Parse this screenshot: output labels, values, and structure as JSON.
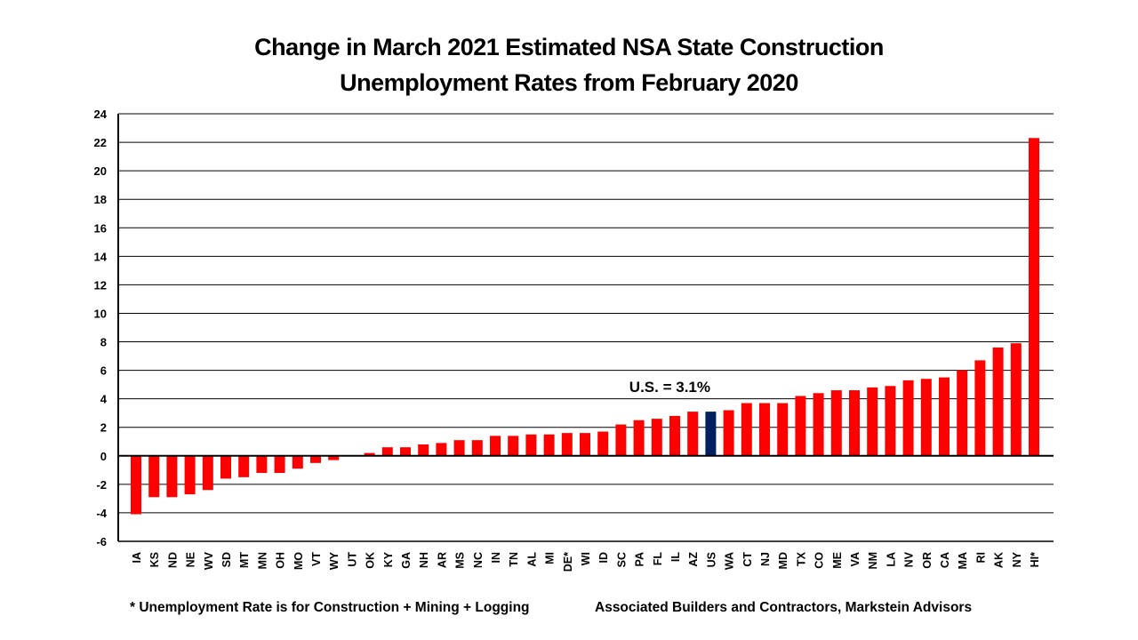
{
  "chart_data": {
    "type": "bar",
    "title_line1": "Change in March 2021 Estimated NSA State Construction",
    "title_line2": "Unemployment Rates from February 2020",
    "xlabel": "",
    "ylabel": "",
    "ylim": [
      -6,
      24
    ],
    "yticks": [
      -6,
      -4,
      -2,
      0,
      2,
      4,
      6,
      8,
      10,
      12,
      14,
      16,
      18,
      20,
      22,
      24
    ],
    "grid": true,
    "categories": [
      "IA",
      "KS",
      "ND",
      "NE",
      "WV",
      "SD",
      "MT",
      "MN",
      "OH",
      "MO",
      "VT",
      "WY",
      "UT",
      "OK",
      "KY",
      "GA",
      "NH",
      "AR",
      "MS",
      "NC",
      "IN",
      "TN",
      "AL",
      "MI",
      "DE*",
      "WI",
      "ID",
      "SC",
      "PA",
      "FL",
      "IL",
      "AZ",
      "US",
      "WA",
      "CT",
      "NJ",
      "MD",
      "TX",
      "CO",
      "ME",
      "VA",
      "NM",
      "LA",
      "NV",
      "OR",
      "CA",
      "MA",
      "RI",
      "AK",
      "NY",
      "HI*"
    ],
    "values": [
      -4.1,
      -2.9,
      -2.9,
      -2.7,
      -2.4,
      -1.6,
      -1.5,
      -1.2,
      -1.2,
      -0.9,
      -0.5,
      -0.3,
      0.0,
      0.2,
      0.6,
      0.6,
      0.8,
      0.9,
      1.1,
      1.1,
      1.4,
      1.4,
      1.5,
      1.5,
      1.6,
      1.6,
      1.7,
      2.2,
      2.5,
      2.6,
      2.8,
      3.1,
      3.1,
      3.2,
      3.7,
      3.7,
      3.7,
      4.2,
      4.4,
      4.6,
      4.6,
      4.8,
      4.9,
      5.3,
      5.4,
      5.5,
      6.0,
      6.7,
      7.6,
      7.9,
      22.3
    ],
    "highlight_category": "US",
    "annotation": "U.S. = 3.1%",
    "colors": {
      "bar": "#ff0000",
      "highlight": "#002060"
    }
  },
  "footnote": "* Unemployment Rate is for Construction + Mining + Logging",
  "source": "Associated Builders and Contractors, Markstein Advisors"
}
